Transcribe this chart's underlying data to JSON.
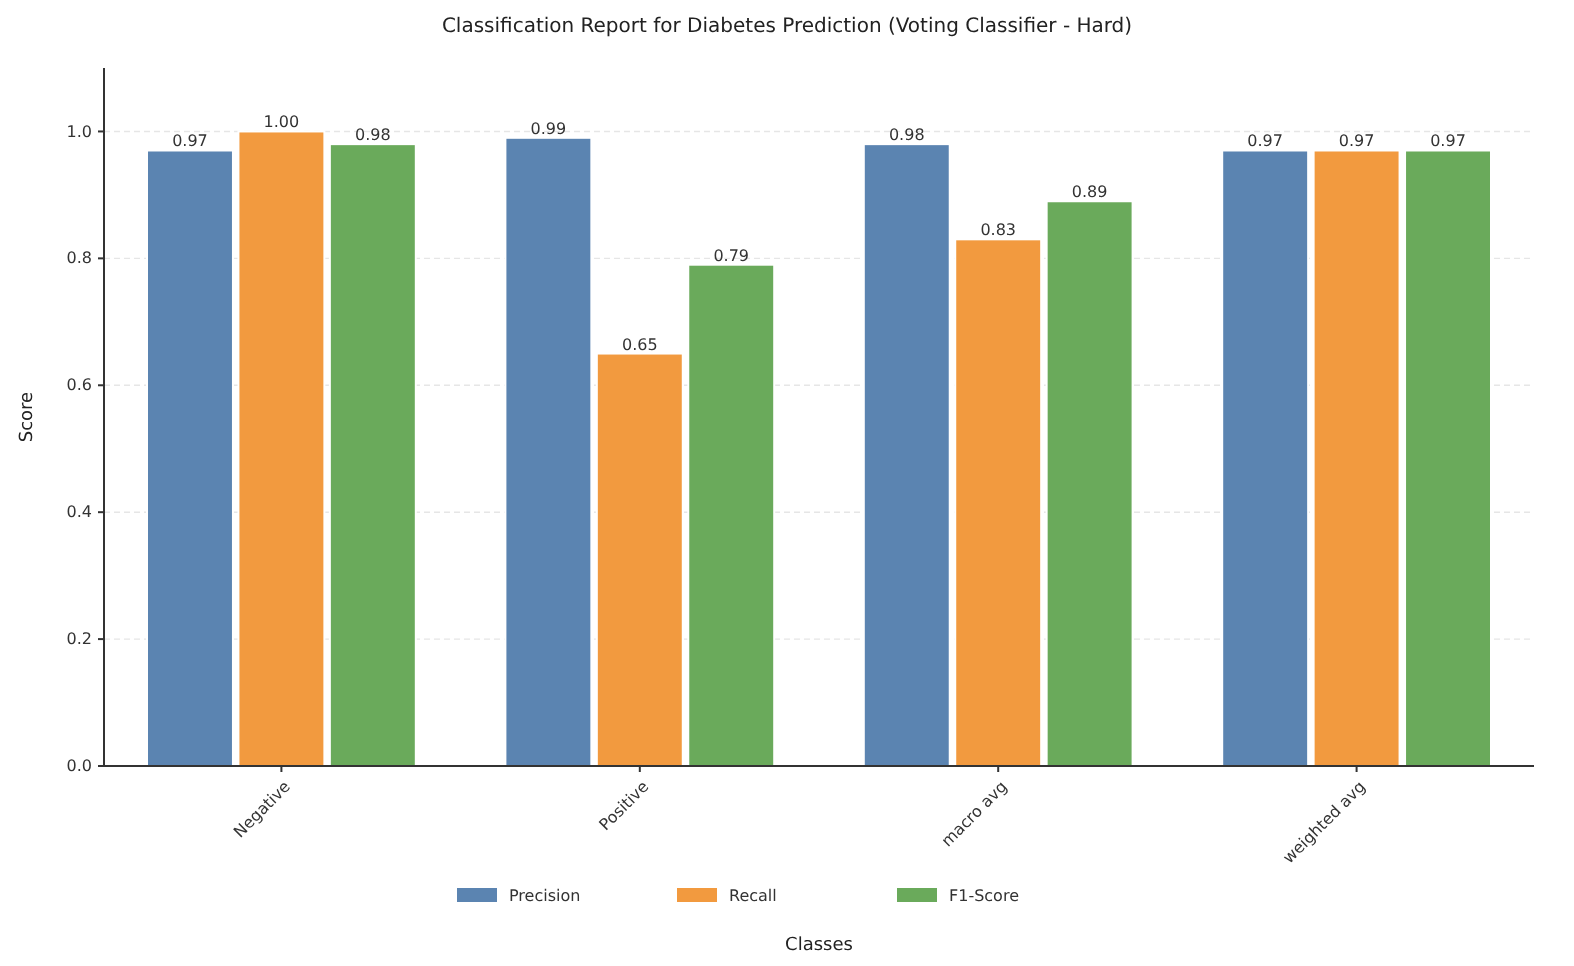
{
  "chart_data": {
    "type": "bar",
    "title": "Classification Report for Diabetes Prediction (Voting Classifier - Hard)",
    "xlabel": "Classes",
    "ylabel": "Score",
    "categories": [
      "Negative",
      "Positive",
      "macro avg",
      "weighted avg"
    ],
    "series": [
      {
        "name": "Precision",
        "color": "#5b84b1",
        "values": [
          0.97,
          0.99,
          0.98,
          0.97
        ],
        "value_labels": [
          "0.97",
          "0.99",
          "0.98",
          "0.97"
        ]
      },
      {
        "name": "Recall",
        "color": "#f29a3f",
        "values": [
          1.0,
          0.65,
          0.83,
          0.97
        ],
        "value_labels": [
          "1.00",
          "0.65",
          "0.83",
          "0.97"
        ]
      },
      {
        "name": "F1-Score",
        "color": "#6aaa5b",
        "values": [
          0.98,
          0.79,
          0.89,
          0.97
        ],
        "value_labels": [
          "0.98",
          "0.79",
          "0.89",
          "0.97"
        ]
      }
    ],
    "ylim": [
      0,
      1.1
    ],
    "yticks": [
      {
        "value": 0,
        "label": "0.0"
      },
      {
        "value": 0.2,
        "label": "0.2"
      },
      {
        "value": 0.4,
        "label": "0.4"
      },
      {
        "value": 0.6,
        "label": "0.6"
      },
      {
        "value": 0.8,
        "label": "0.8"
      },
      {
        "value": 1,
        "label": "1.0"
      }
    ],
    "grid": "y",
    "legend": "bottom"
  }
}
